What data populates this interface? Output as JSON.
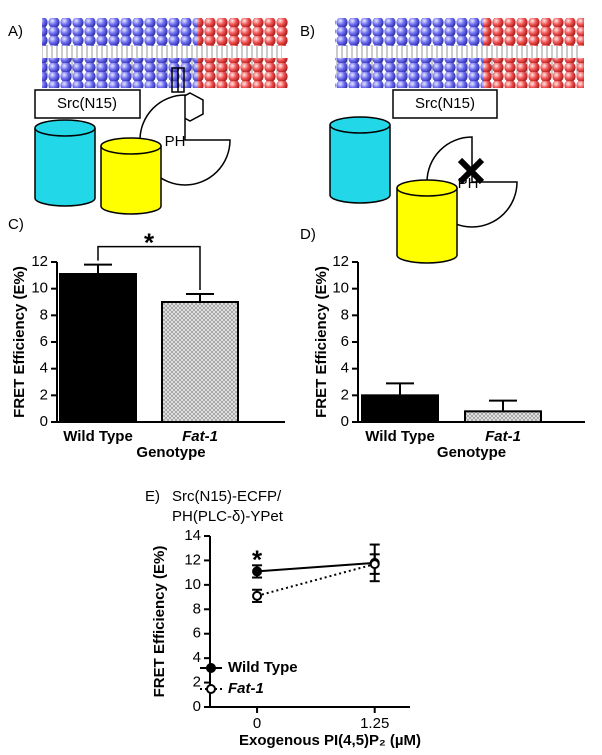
{
  "diagrams": [
    {
      "label": "A)",
      "protein": "Src(N15)",
      "domain": "PH"
    },
    {
      "label": "B)",
      "protein": "Src(N15)",
      "domain": "PH"
    }
  ],
  "chart_data": [
    {
      "type": "bar",
      "label": "C)",
      "ylabel": "FRET Efficiency (E%)",
      "xlabel": "Genotype",
      "categories": [
        "Wild Type",
        "Fat-1"
      ],
      "values": [
        11.1,
        9.0
      ],
      "errors": [
        0.7,
        0.6
      ],
      "colors": [
        "#000000",
        "#d9d9d9"
      ],
      "hatch": [
        false,
        true
      ],
      "italic_categories": [
        false,
        true
      ],
      "ylim": [
        0,
        12
      ],
      "yticks": [
        0,
        2,
        4,
        6,
        8,
        10,
        12
      ],
      "annotation": "*"
    },
    {
      "type": "bar",
      "label": "D)",
      "ylabel": "FRET Efficiency (E%)",
      "xlabel": "Genotype",
      "categories": [
        "Wild Type",
        "Fat-1"
      ],
      "values": [
        2.0,
        0.8
      ],
      "errors": [
        0.9,
        0.8
      ],
      "colors": [
        "#000000",
        "#d9d9d9"
      ],
      "hatch": [
        false,
        true
      ],
      "italic_categories": [
        false,
        true
      ],
      "ylim": [
        0,
        12
      ],
      "yticks": [
        0,
        2,
        4,
        6,
        8,
        10,
        12
      ]
    },
    {
      "type": "line",
      "label": "E)",
      "title": [
        "Src(N15)-ECFP/",
        "PH(PLC-δ)-YPet"
      ],
      "ylabel": "FRET Efficiency (E%)",
      "xlabel": "Exogenous PI(4,5)P₂ (µM)",
      "x": [
        0,
        1.25
      ],
      "xlim": [
        -0.5,
        1.625
      ],
      "xticks": [
        0,
        1.25
      ],
      "ylim": [
        0,
        14
      ],
      "yticks": [
        0,
        2,
        4,
        6,
        8,
        10,
        12,
        14
      ],
      "series": [
        {
          "name": "Wild Type",
          "color": "#000000",
          "linestyle": "solid",
          "marker": "filled",
          "italic": false,
          "values": [
            11.1,
            11.8
          ],
          "errors": [
            0.5,
            1.5
          ]
        },
        {
          "name": "Fat-1",
          "color": "#000000",
          "linestyle": "dotted",
          "marker": "open",
          "italic": true,
          "values": [
            9.1,
            11.7
          ],
          "errors": [
            0.5,
            0.8
          ]
        }
      ],
      "legend": "bottom-left",
      "annotation": "*"
    }
  ]
}
